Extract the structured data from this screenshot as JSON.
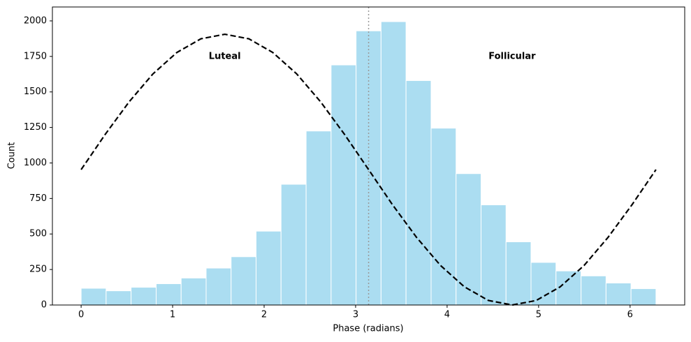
{
  "chart_data": {
    "type": "histogram",
    "xlabel": "Phase (radians)",
    "ylabel": "Count",
    "bins": [
      0,
      0.273,
      0.546,
      0.82,
      1.093,
      1.366,
      1.639,
      1.912,
      2.185,
      2.459,
      2.732,
      3.005,
      3.278,
      3.551,
      3.825,
      4.098,
      4.371,
      4.644,
      4.917,
      5.19,
      5.464,
      5.737,
      6.01,
      6.283
    ],
    "values": [
      118,
      100,
      125,
      150,
      190,
      260,
      340,
      520,
      850,
      1225,
      1690,
      1930,
      1995,
      1580,
      1245,
      925,
      705,
      445,
      300,
      240,
      205,
      155,
      115
    ],
    "color": "#87ceeb",
    "alpha": 0.7,
    "edgecolor": "#ffffff",
    "lines": [
      {
        "color": "#000000",
        "style": "dashed",
        "x": [
          0,
          0.262,
          0.524,
          0.785,
          1.047,
          1.309,
          1.571,
          1.833,
          2.094,
          2.356,
          2.618,
          2.88,
          3.142,
          3.403,
          3.665,
          3.927,
          4.189,
          4.451,
          4.712,
          4.974,
          5.236,
          5.498,
          5.76,
          6.021,
          6.283
        ],
        "values": [
          953,
          1200,
          1430,
          1627,
          1778,
          1874,
          1906,
          1874,
          1778,
          1627,
          1430,
          1200,
          953,
          706,
          477,
          279,
          128,
          32,
          0,
          32,
          128,
          279,
          477,
          706,
          953
        ]
      }
    ],
    "vline": {
      "x": 3.142,
      "color": "#999999",
      "style": "dotted"
    },
    "annotations": [
      {
        "text": "Luteal",
        "x": 1.57,
        "y": 1750
      },
      {
        "text": "Follicular",
        "x": 4.71,
        "y": 1750
      }
    ],
    "xlim": [
      -0.314,
      6.597
    ],
    "ylim": [
      0,
      2098
    ],
    "xticks": [
      0,
      1,
      2,
      3,
      4,
      5,
      6
    ],
    "yticks": [
      0,
      250,
      500,
      750,
      1000,
      1250,
      1500,
      1750,
      2000
    ]
  }
}
